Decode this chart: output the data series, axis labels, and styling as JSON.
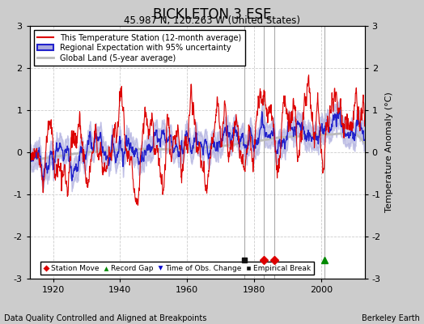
{
  "title": "BICKLETON 3 ESE",
  "subtitle": "45.987 N, 120.263 W (United States)",
  "ylabel": "Temperature Anomaly (°C)",
  "xlabel_left": "Data Quality Controlled and Aligned at Breakpoints",
  "xlabel_right": "Berkeley Earth",
  "ylim": [
    -3,
    3
  ],
  "xlim": [
    1913,
    2013
  ],
  "xticks": [
    1920,
    1940,
    1960,
    1980,
    2000
  ],
  "yticks": [
    -3,
    -2,
    -1,
    0,
    1,
    2,
    3
  ],
  "bg_color": "#cccccc",
  "plot_bg_color": "#ffffff",
  "station_line_color": "#dd0000",
  "regional_line_color": "#2222cc",
  "regional_fill_color": "#aaaadd",
  "global_line_color": "#bbbbbb",
  "grid_color": "#cccccc",
  "station_move_color": "#dd0000",
  "record_gap_color": "#008800",
  "tobs_color": "#0000cc",
  "emp_break_color": "#111111",
  "vline_color": "#888888",
  "seed": 42,
  "n_years": 100,
  "start_year": 1913,
  "markers": {
    "empirical_break": [
      1977
    ],
    "station_move": [
      1983,
      1986
    ],
    "record_gap": [
      2001
    ],
    "tobs_change": []
  },
  "vlines": [
    1977,
    1983,
    1986,
    2001
  ],
  "legend_items": [
    "This Temperature Station (12-month average)",
    "Regional Expectation with 95% uncertainty",
    "Global Land (5-year average)"
  ],
  "bottom_legend_items": [
    "Station Move",
    "Record Gap",
    "Time of Obs. Change",
    "Empirical Break"
  ]
}
